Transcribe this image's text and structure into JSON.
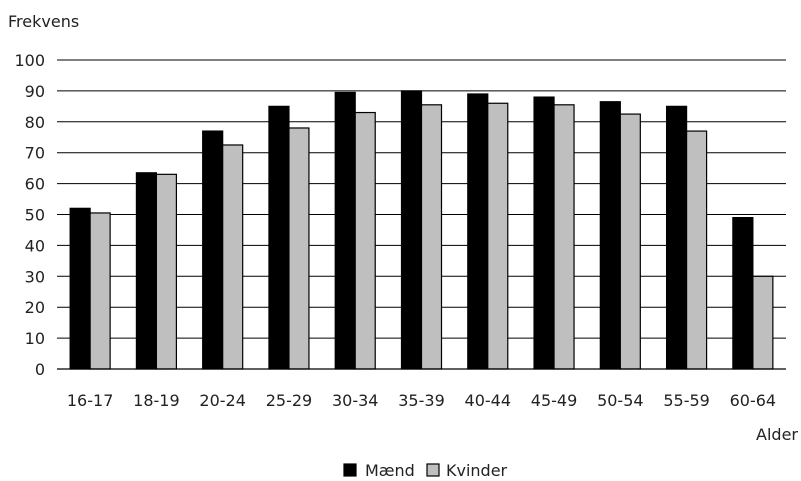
{
  "chart_data": {
    "type": "bar",
    "ylabel": "Frekvens",
    "xlabel": "Alder",
    "ylim": [
      0,
      100
    ],
    "yticks": [
      0,
      10,
      20,
      30,
      40,
      50,
      60,
      70,
      80,
      90,
      100
    ],
    "grid": true,
    "legend_position": "bottom-center",
    "categories": [
      "16-17",
      "18-19",
      "20-24",
      "25-29",
      "30-34",
      "35-39",
      "40-44",
      "45-49",
      "50-54",
      "55-59",
      "60-64"
    ],
    "series": [
      {
        "name": "Mænd",
        "color": "#000000",
        "values": [
          52,
          63.5,
          77,
          85,
          89.5,
          90,
          89,
          88,
          86.5,
          85,
          49
        ]
      },
      {
        "name": "Kvinder",
        "color": "#bfbfbf",
        "values": [
          50.5,
          63,
          72.5,
          78,
          83,
          85.5,
          86,
          85.5,
          82.5,
          77,
          30
        ]
      }
    ]
  }
}
